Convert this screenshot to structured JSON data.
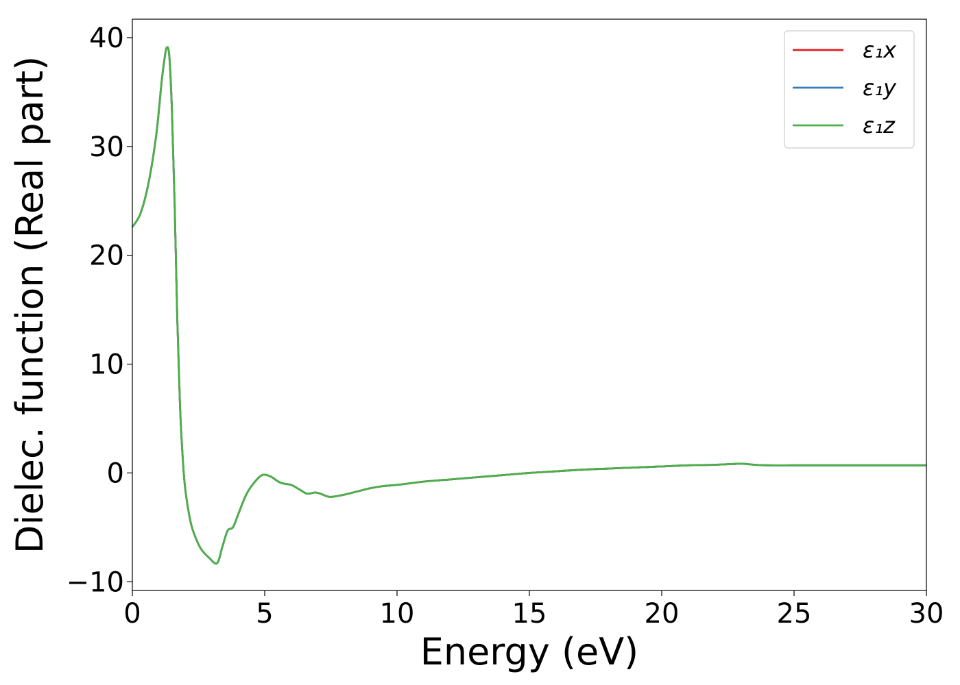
{
  "chart_data": {
    "type": "line",
    "title": "",
    "xlabel": "Energy (eV)",
    "ylabel": "Dielec. function (Real part)",
    "xlim": [
      0,
      30
    ],
    "ylim": [
      -10.8,
      41.7
    ],
    "xticks": [
      0,
      5,
      10,
      15,
      20,
      25,
      30
    ],
    "xtick_labels": [
      "0",
      "5",
      "10",
      "15",
      "20",
      "25",
      "30"
    ],
    "yticks": [
      -10,
      0,
      10,
      20,
      30,
      40
    ],
    "ytick_labels": [
      "−10",
      "0",
      "10",
      "20",
      "30",
      "40"
    ],
    "grid": false,
    "legend_position": "top-right",
    "x": [
      0,
      0.3,
      0.6,
      0.9,
      1.1,
      1.2,
      1.3,
      1.4,
      1.5,
      1.6,
      1.7,
      1.8,
      1.9,
      2.0,
      2.2,
      2.4,
      2.6,
      2.9,
      3.2,
      3.4,
      3.6,
      3.8,
      4.0,
      4.3,
      4.6,
      4.9,
      5.2,
      5.6,
      6.0,
      6.3,
      6.6,
      6.9,
      7.1,
      7.3,
      7.5,
      8.0,
      8.5,
      9.0,
      9.5,
      10,
      11,
      12,
      13,
      14,
      15,
      16,
      17,
      18,
      19,
      20,
      21,
      22,
      23,
      23.5,
      24,
      25,
      26,
      27,
      28,
      29,
      30
    ],
    "series": [
      {
        "name": "ε₁x",
        "color": "#e41a1c",
        "values": [
          22.6,
          23.8,
          26.5,
          31.0,
          35.8,
          37.8,
          39.1,
          38.2,
          33.0,
          24.5,
          14.0,
          6.2,
          1.5,
          -1.5,
          -4.5,
          -6.0,
          -7.0,
          -7.8,
          -8.3,
          -6.8,
          -5.3,
          -5.0,
          -3.8,
          -2.0,
          -0.9,
          -0.2,
          -0.3,
          -0.9,
          -1.1,
          -1.5,
          -1.9,
          -1.8,
          -1.9,
          -2.1,
          -2.2,
          -2.0,
          -1.7,
          -1.4,
          -1.2,
          -1.1,
          -0.8,
          -0.6,
          -0.4,
          -0.2,
          0.0,
          0.15,
          0.3,
          0.4,
          0.5,
          0.6,
          0.7,
          0.75,
          0.85,
          0.75,
          0.7,
          0.7,
          0.7,
          0.7,
          0.7,
          0.7,
          0.7
        ]
      },
      {
        "name": "ε₁y",
        "color": "#377eb8",
        "values": [
          22.6,
          23.8,
          26.5,
          31.0,
          35.8,
          37.8,
          39.1,
          38.2,
          33.0,
          24.5,
          14.0,
          6.2,
          1.5,
          -1.5,
          -4.5,
          -6.0,
          -7.0,
          -7.8,
          -8.3,
          -6.8,
          -5.3,
          -5.0,
          -3.8,
          -2.0,
          -0.9,
          -0.2,
          -0.3,
          -0.9,
          -1.1,
          -1.5,
          -1.9,
          -1.8,
          -1.9,
          -2.1,
          -2.2,
          -2.0,
          -1.7,
          -1.4,
          -1.2,
          -1.1,
          -0.8,
          -0.6,
          -0.4,
          -0.2,
          0.0,
          0.15,
          0.3,
          0.4,
          0.5,
          0.6,
          0.7,
          0.75,
          0.85,
          0.75,
          0.7,
          0.7,
          0.7,
          0.7,
          0.7,
          0.7,
          0.7
        ]
      },
      {
        "name": "ε₁z",
        "color": "#4daf4a",
        "values": [
          22.6,
          23.8,
          26.5,
          31.0,
          35.8,
          37.8,
          39.1,
          38.2,
          33.0,
          24.5,
          14.0,
          6.2,
          1.5,
          -1.5,
          -4.5,
          -6.0,
          -7.0,
          -7.8,
          -8.3,
          -6.8,
          -5.3,
          -5.0,
          -3.8,
          -2.0,
          -0.9,
          -0.2,
          -0.3,
          -0.9,
          -1.1,
          -1.5,
          -1.9,
          -1.8,
          -1.9,
          -2.1,
          -2.2,
          -2.0,
          -1.7,
          -1.4,
          -1.2,
          -1.1,
          -0.8,
          -0.6,
          -0.4,
          -0.2,
          0.0,
          0.15,
          0.3,
          0.4,
          0.5,
          0.6,
          0.7,
          0.75,
          0.85,
          0.75,
          0.7,
          0.7,
          0.7,
          0.7,
          0.7,
          0.7,
          0.7
        ]
      }
    ]
  }
}
